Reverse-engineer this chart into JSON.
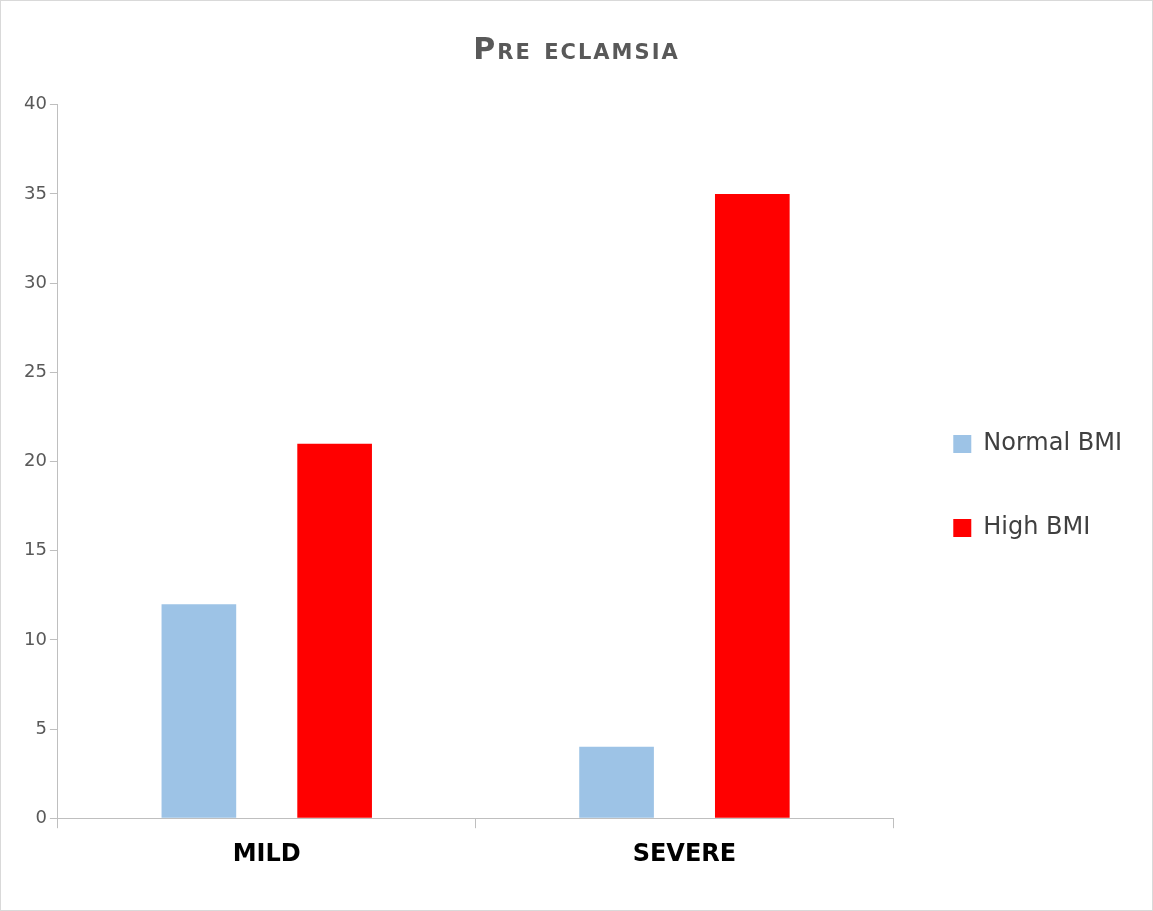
{
  "chart_data": {
    "type": "bar",
    "title": "Pre eclamsia",
    "categories": [
      "MILD",
      "SEVERE"
    ],
    "series": [
      {
        "name": "Normal BMI",
        "color": "#9dc3e6",
        "values": [
          12,
          4
        ]
      },
      {
        "name": "High BMI",
        "color": "#ff0000",
        "values": [
          21,
          35
        ]
      }
    ],
    "ylim": [
      0,
      40
    ],
    "yticks": [
      0,
      5,
      10,
      15,
      20,
      25,
      30,
      35,
      40
    ],
    "grid": false,
    "legend": "right"
  }
}
